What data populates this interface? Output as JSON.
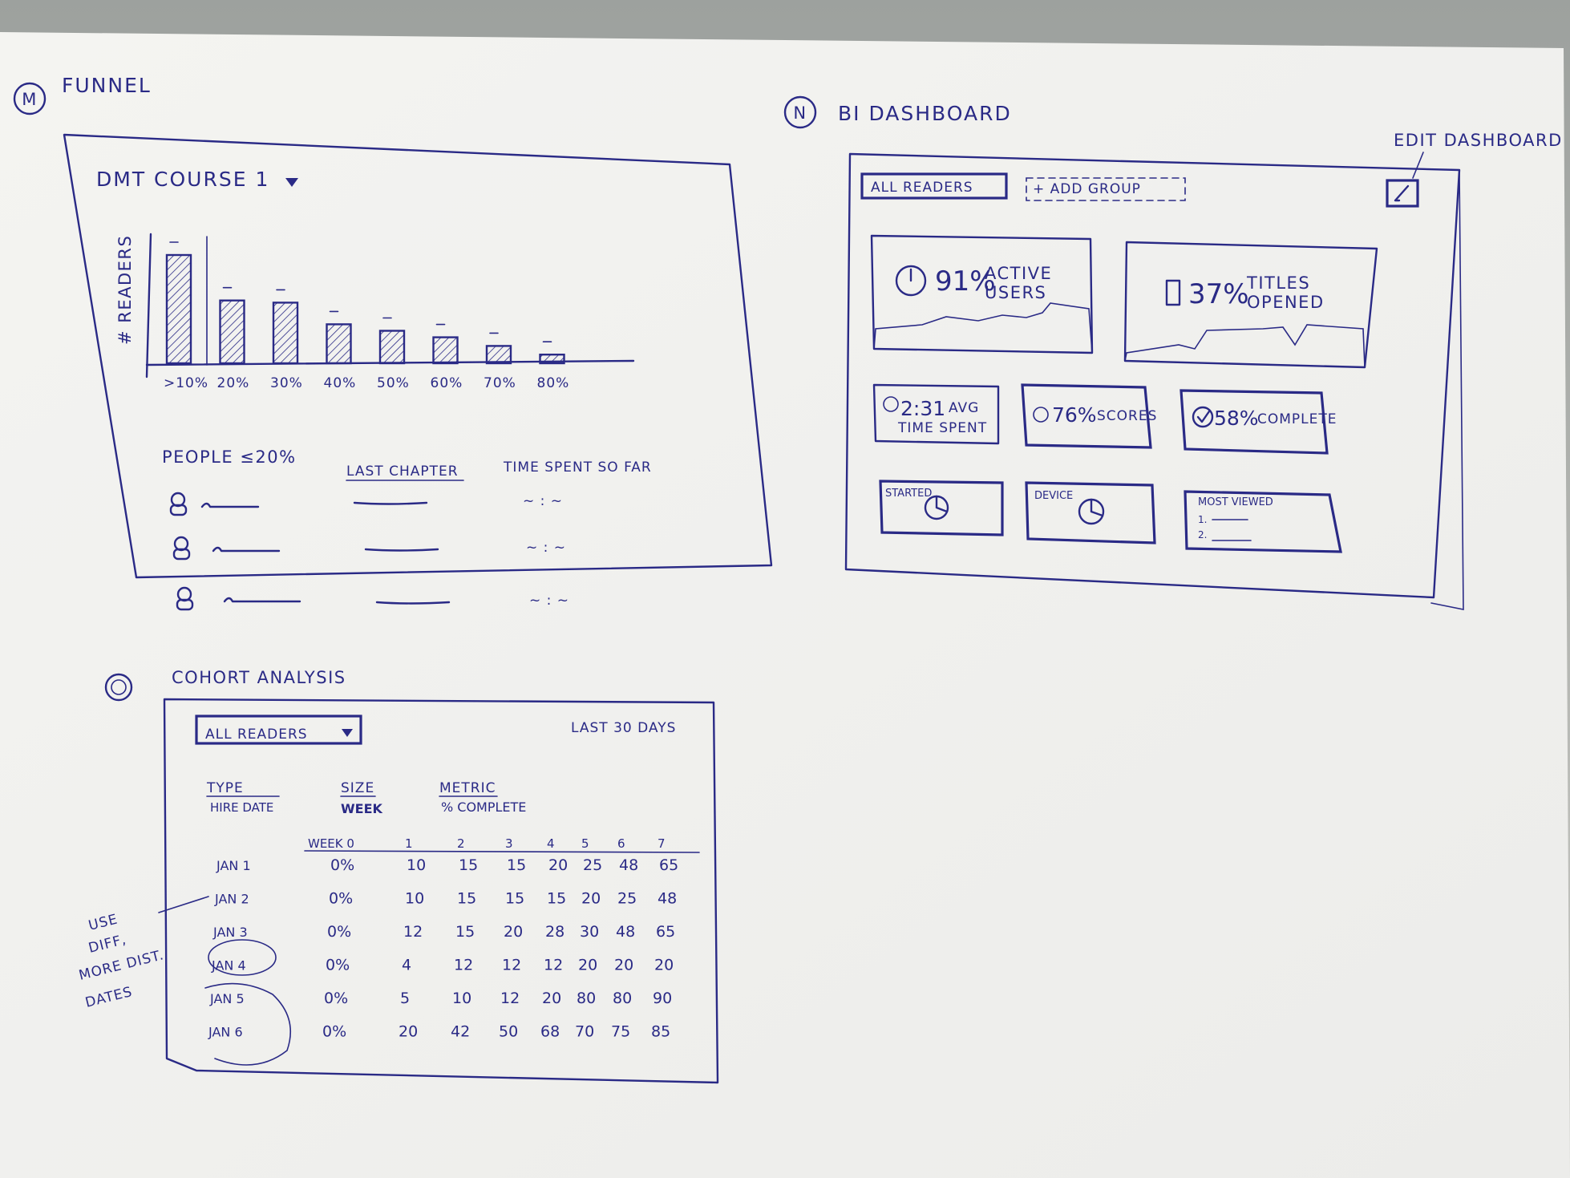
{
  "funnel": {
    "marker": "M",
    "heading": "FUNNEL",
    "course_selector": "DMT COURSE 1",
    "y_axis_label": "# READERS",
    "bars": [
      {
        "label": ">10%",
        "value": 100
      },
      {
        "label": "20%",
        "value": 58
      },
      {
        "label": "30%",
        "value": 56
      },
      {
        "label": "40%",
        "value": 36
      },
      {
        "label": "50%",
        "value": 30
      },
      {
        "label": "60%",
        "value": 24
      },
      {
        "label": "70%",
        "value": 16
      },
      {
        "label": "80%",
        "value": 8
      }
    ],
    "people_title": "PEOPLE ≤20%",
    "col_last_chapter": "LAST CHAPTER",
    "col_time_spent": "TIME SPENT SO FAR",
    "time_placeholder": "~ : ~",
    "rows": 3
  },
  "bi": {
    "marker": "N",
    "heading": "BI DASHBOARD",
    "edit_note": "EDIT DASHBOARD",
    "filter_label": "ALL READERS",
    "add_group_label": "+ ADD GROUP",
    "kpi_active": {
      "value": "91%",
      "label_line1": "ACTIVE",
      "label_line2": "USERS"
    },
    "kpi_titles": {
      "value": "37%",
      "label_line1": "TITLES",
      "label_line2": "OPENED"
    },
    "stat_time": {
      "value": "2:31",
      "label_line1": "AVG",
      "label_line2": "TIME SPENT"
    },
    "stat_scores": {
      "value": "76%",
      "label": "SCORES"
    },
    "stat_complete": {
      "value": "58%",
      "label": "COMPLETE"
    },
    "card_started": "STARTED",
    "card_device": "DEVICE",
    "card_most_viewed": "MOST VIEWED",
    "most_viewed_items": [
      "1.",
      "2."
    ]
  },
  "cohort": {
    "marker": "O",
    "heading": "COHORT ANALYSIS",
    "filter_label": "ALL READERS",
    "range_label": "LAST 30 DAYS",
    "type_header": "TYPE",
    "type_value": "HIRE DATE",
    "size_header": "SIZE",
    "size_value": "WEEK",
    "metric_header": "METRIC",
    "metric_value": "% COMPLETE",
    "columns": [
      "WEEK 0",
      "1",
      "2",
      "3",
      "4",
      "5",
      "6",
      "7"
    ],
    "rows": [
      {
        "date": "JAN 1",
        "values": [
          "0%",
          "10",
          "15",
          "15",
          "20",
          "25",
          "48",
          "65"
        ]
      },
      {
        "date": "JAN 2",
        "values": [
          "0%",
          "10",
          "15",
          "15",
          "15",
          "20",
          "25",
          "48"
        ]
      },
      {
        "date": "JAN 3",
        "values": [
          "0%",
          "12",
          "15",
          "20",
          "28",
          "30",
          "48",
          "65"
        ]
      },
      {
        "date": "JAN 4",
        "values": [
          "0%",
          "4",
          "12",
          "12",
          "12",
          "20",
          "20",
          "20"
        ]
      },
      {
        "date": "JAN 5",
        "values": [
          "0%",
          "5",
          "10",
          "12",
          "20",
          "80",
          "80",
          "90"
        ]
      },
      {
        "date": "JAN 6",
        "values": [
          "0%",
          "20",
          "42",
          "50",
          "68",
          "70",
          "75",
          "85"
        ]
      }
    ],
    "side_note": [
      "USE",
      "DIFF,",
      "MORE DIST.",
      "DATES"
    ]
  }
}
